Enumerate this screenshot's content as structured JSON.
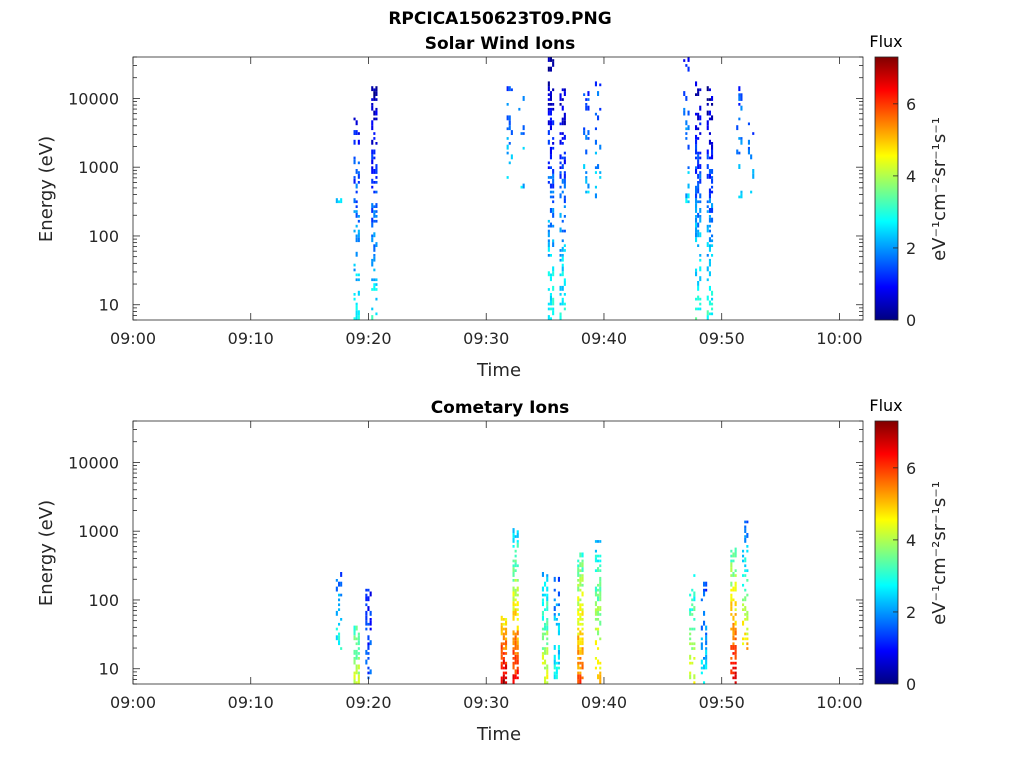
{
  "figure_title": "RPCICA150623T09.PNG",
  "colors": {
    "colormap": "jet",
    "axis": "#262626",
    "background": "#ffffff"
  },
  "chart_data": [
    {
      "type": "heatmap",
      "title": "Solar Wind Ions",
      "xlabel": "Time",
      "ylabel": "Energy (eV)",
      "yscale": "log",
      "ylim": [
        6,
        40000
      ],
      "xlim_minutes": [
        0,
        62
      ],
      "x_ticks": [
        "09:00",
        "09:10",
        "09:20",
        "09:30",
        "09:40",
        "09:50",
        "10:00"
      ],
      "y_ticks": [
        "10",
        "100",
        "1000",
        "10000"
      ],
      "colorbar": {
        "title": "Flux",
        "label": "eV⁻¹cm⁻²sr⁻¹s⁻¹",
        "range": [
          0,
          7.3
        ],
        "ticks": [
          "0",
          "2",
          "4",
          "6"
        ]
      },
      "bursts": [
        {
          "time": "09:17:30",
          "emin": 300,
          "emax": 350,
          "flux_low": 2.4,
          "flux_high": 2.4,
          "density": 0.6
        },
        {
          "time": "09:19:00",
          "emin": 6,
          "emax": 6000,
          "flux_low": 2.8,
          "flux_high": 0.8,
          "density": 0.35
        },
        {
          "time": "09:20:30",
          "emin": 6,
          "emax": 16000,
          "flux_low": 2.8,
          "flux_high": 0.2,
          "density": 0.45
        },
        {
          "time": "09:32:00",
          "emin": 400,
          "emax": 18000,
          "flux_low": 2.6,
          "flux_high": 1.4,
          "density": 0.25
        },
        {
          "time": "09:33:00",
          "emin": 500,
          "emax": 12000,
          "flux_low": 2.4,
          "flux_high": 1.6,
          "density": 0.2
        },
        {
          "time": "09:35:30",
          "emin": 6,
          "emax": 40000,
          "flux_low": 3.0,
          "flux_high": 0.2,
          "density": 0.55
        },
        {
          "time": "09:36:30",
          "emin": 6,
          "emax": 15000,
          "flux_low": 3.0,
          "flux_high": 0.3,
          "density": 0.5
        },
        {
          "time": "09:38:30",
          "emin": 300,
          "emax": 14000,
          "flux_low": 2.5,
          "flux_high": 1.3,
          "density": 0.22
        },
        {
          "time": "09:39:30",
          "emin": 300,
          "emax": 18000,
          "flux_low": 2.4,
          "flux_high": 1.4,
          "density": 0.2
        },
        {
          "time": "09:47:00",
          "emin": 300,
          "emax": 40000,
          "flux_low": 2.4,
          "flux_high": 1.0,
          "density": 0.2
        },
        {
          "time": "09:48:00",
          "emin": 6,
          "emax": 20000,
          "flux_low": 3.2,
          "flux_high": 0.3,
          "density": 0.5
        },
        {
          "time": "09:49:00",
          "emin": 6,
          "emax": 16000,
          "flux_low": 3.0,
          "flux_high": 0.3,
          "density": 0.5
        },
        {
          "time": "09:51:30",
          "emin": 300,
          "emax": 16000,
          "flux_low": 2.4,
          "flux_high": 1.3,
          "density": 0.25
        },
        {
          "time": "09:52:30",
          "emin": 300,
          "emax": 5000,
          "flux_low": 2.2,
          "flux_high": 1.4,
          "density": 0.2
        }
      ]
    },
    {
      "type": "heatmap",
      "title": "Cometary Ions",
      "xlabel": "Time",
      "ylabel": "Energy (eV)",
      "yscale": "log",
      "ylim": [
        6,
        40000
      ],
      "xlim_minutes": [
        0,
        62
      ],
      "x_ticks": [
        "09:00",
        "09:10",
        "09:20",
        "09:30",
        "09:40",
        "09:50",
        "10:00"
      ],
      "y_ticks": [
        "10",
        "100",
        "1000",
        "10000"
      ],
      "colorbar": {
        "title": "Flux",
        "label": "eV⁻¹cm⁻²sr⁻¹s⁻¹",
        "range": [
          0,
          7.3
        ],
        "ticks": [
          "0",
          "2",
          "4",
          "6"
        ]
      },
      "bursts": [
        {
          "time": "09:17:30",
          "emin": 20,
          "emax": 250,
          "flux_low": 3.0,
          "flux_high": 1.6,
          "density": 0.45
        },
        {
          "time": "09:19:00",
          "emin": 6,
          "emax": 40,
          "flux_low": 4.2,
          "flux_high": 3.2,
          "density": 0.7
        },
        {
          "time": "09:20:00",
          "emin": 6,
          "emax": 160,
          "flux_low": 1.5,
          "flux_high": 1.0,
          "density": 0.5
        },
        {
          "time": "09:31:30",
          "emin": 6,
          "emax": 60,
          "flux_low": 7.0,
          "flux_high": 4.5,
          "density": 0.95
        },
        {
          "time": "09:32:30",
          "emin": 6,
          "emax": 1200,
          "flux_low": 6.5,
          "flux_high": 2.4,
          "density": 0.7
        },
        {
          "time": "09:35:00",
          "emin": 6,
          "emax": 250,
          "flux_low": 4.5,
          "flux_high": 2.4,
          "density": 0.6
        },
        {
          "time": "09:36:00",
          "emin": 6,
          "emax": 220,
          "flux_low": 3.0,
          "flux_high": 1.5,
          "density": 0.5
        },
        {
          "time": "09:38:00",
          "emin": 6,
          "emax": 500,
          "flux_low": 5.8,
          "flux_high": 3.2,
          "density": 0.8
        },
        {
          "time": "09:39:30",
          "emin": 6,
          "emax": 800,
          "flux_low": 5.0,
          "flux_high": 2.4,
          "density": 0.6
        },
        {
          "time": "09:47:30",
          "emin": 6,
          "emax": 250,
          "flux_low": 4.5,
          "flux_high": 2.6,
          "density": 0.6
        },
        {
          "time": "09:48:30",
          "emin": 6,
          "emax": 200,
          "flux_low": 2.6,
          "flux_high": 1.3,
          "density": 0.45
        },
        {
          "time": "09:51:00",
          "emin": 6,
          "emax": 600,
          "flux_low": 6.6,
          "flux_high": 3.2,
          "density": 0.75
        },
        {
          "time": "09:52:00",
          "emin": 20,
          "emax": 1600,
          "flux_low": 5.0,
          "flux_high": 1.5,
          "density": 0.55
        }
      ]
    }
  ]
}
